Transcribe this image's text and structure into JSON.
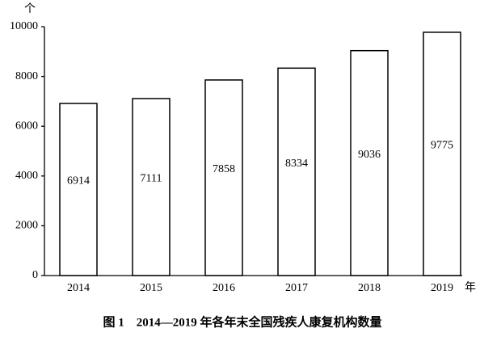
{
  "chart_data": {
    "type": "bar",
    "title": "图 1　2014—2019 年各年末全国残疾人康复机构数量",
    "y_unit": "个",
    "x_unit": "年",
    "categories": [
      "2014",
      "2015",
      "2016",
      "2017",
      "2018",
      "2019"
    ],
    "values": [
      6914,
      7111,
      7858,
      8334,
      9036,
      9775
    ],
    "color": "#ffffff",
    "ylim": [
      0,
      10000
    ],
    "yticks": [
      0,
      2000,
      4000,
      6000,
      8000,
      10000
    ],
    "grid": false
  }
}
